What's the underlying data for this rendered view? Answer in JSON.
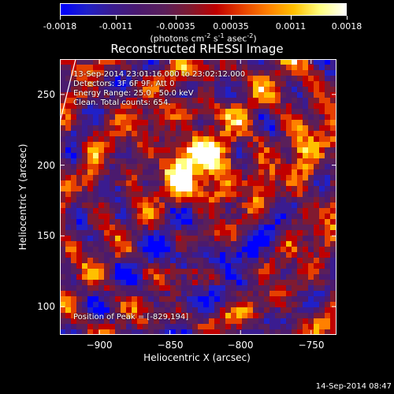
{
  "colorbar": {
    "ticks": [
      "-0.0018",
      "-0.0011",
      "-0.00035",
      "0.00035",
      "0.0011",
      "0.0018"
    ],
    "units_parts": [
      "(photons cm",
      "-2",
      " s",
      "-1",
      " asec",
      "-2",
      ")"
    ],
    "palette": [
      "#0000ff",
      "#2020c8",
      "#3a1c90",
      "#4b1a6e",
      "#5a1f5a",
      "#801a30",
      "#c00000",
      "#e64000",
      "#ff8000",
      "#ffc000",
      "#ffff80",
      "#ffffff"
    ]
  },
  "plot": {
    "title": "Reconstructed RHESSI Image",
    "annotations": [
      "13-Sep-2014 23:01:16.000 to 23:02:12.000",
      "Detectors: 3F 6F 9F, Att 0",
      "Energy Range: 25.0 - 50.0 keV",
      "Clean.   Total counts: 654."
    ],
    "peak_label": "Position of Peak = [-829,194]"
  },
  "chart_data": {
    "type": "heatmap",
    "title": "Reconstructed RHESSI Image",
    "xlabel": "Heliocentric X (arcsec)",
    "ylabel": "Heliocentric Y (arcsec)",
    "xlim": [
      -928,
      -732
    ],
    "ylim": [
      80,
      275
    ],
    "x_ticks": [
      -900,
      -850,
      -800,
      -750
    ],
    "y_ticks": [
      100,
      150,
      200,
      250
    ],
    "x_tick_labels": [
      "−900",
      "−850",
      "−800",
      "−750"
    ],
    "y_tick_labels": [
      "100",
      "150",
      "200",
      "250"
    ],
    "colorbar_range": [
      -0.0018,
      0.0018
    ],
    "peak": [
      -829,
      194
    ]
  },
  "footer": {
    "timestamp": "14-Sep-2014 08:47"
  }
}
